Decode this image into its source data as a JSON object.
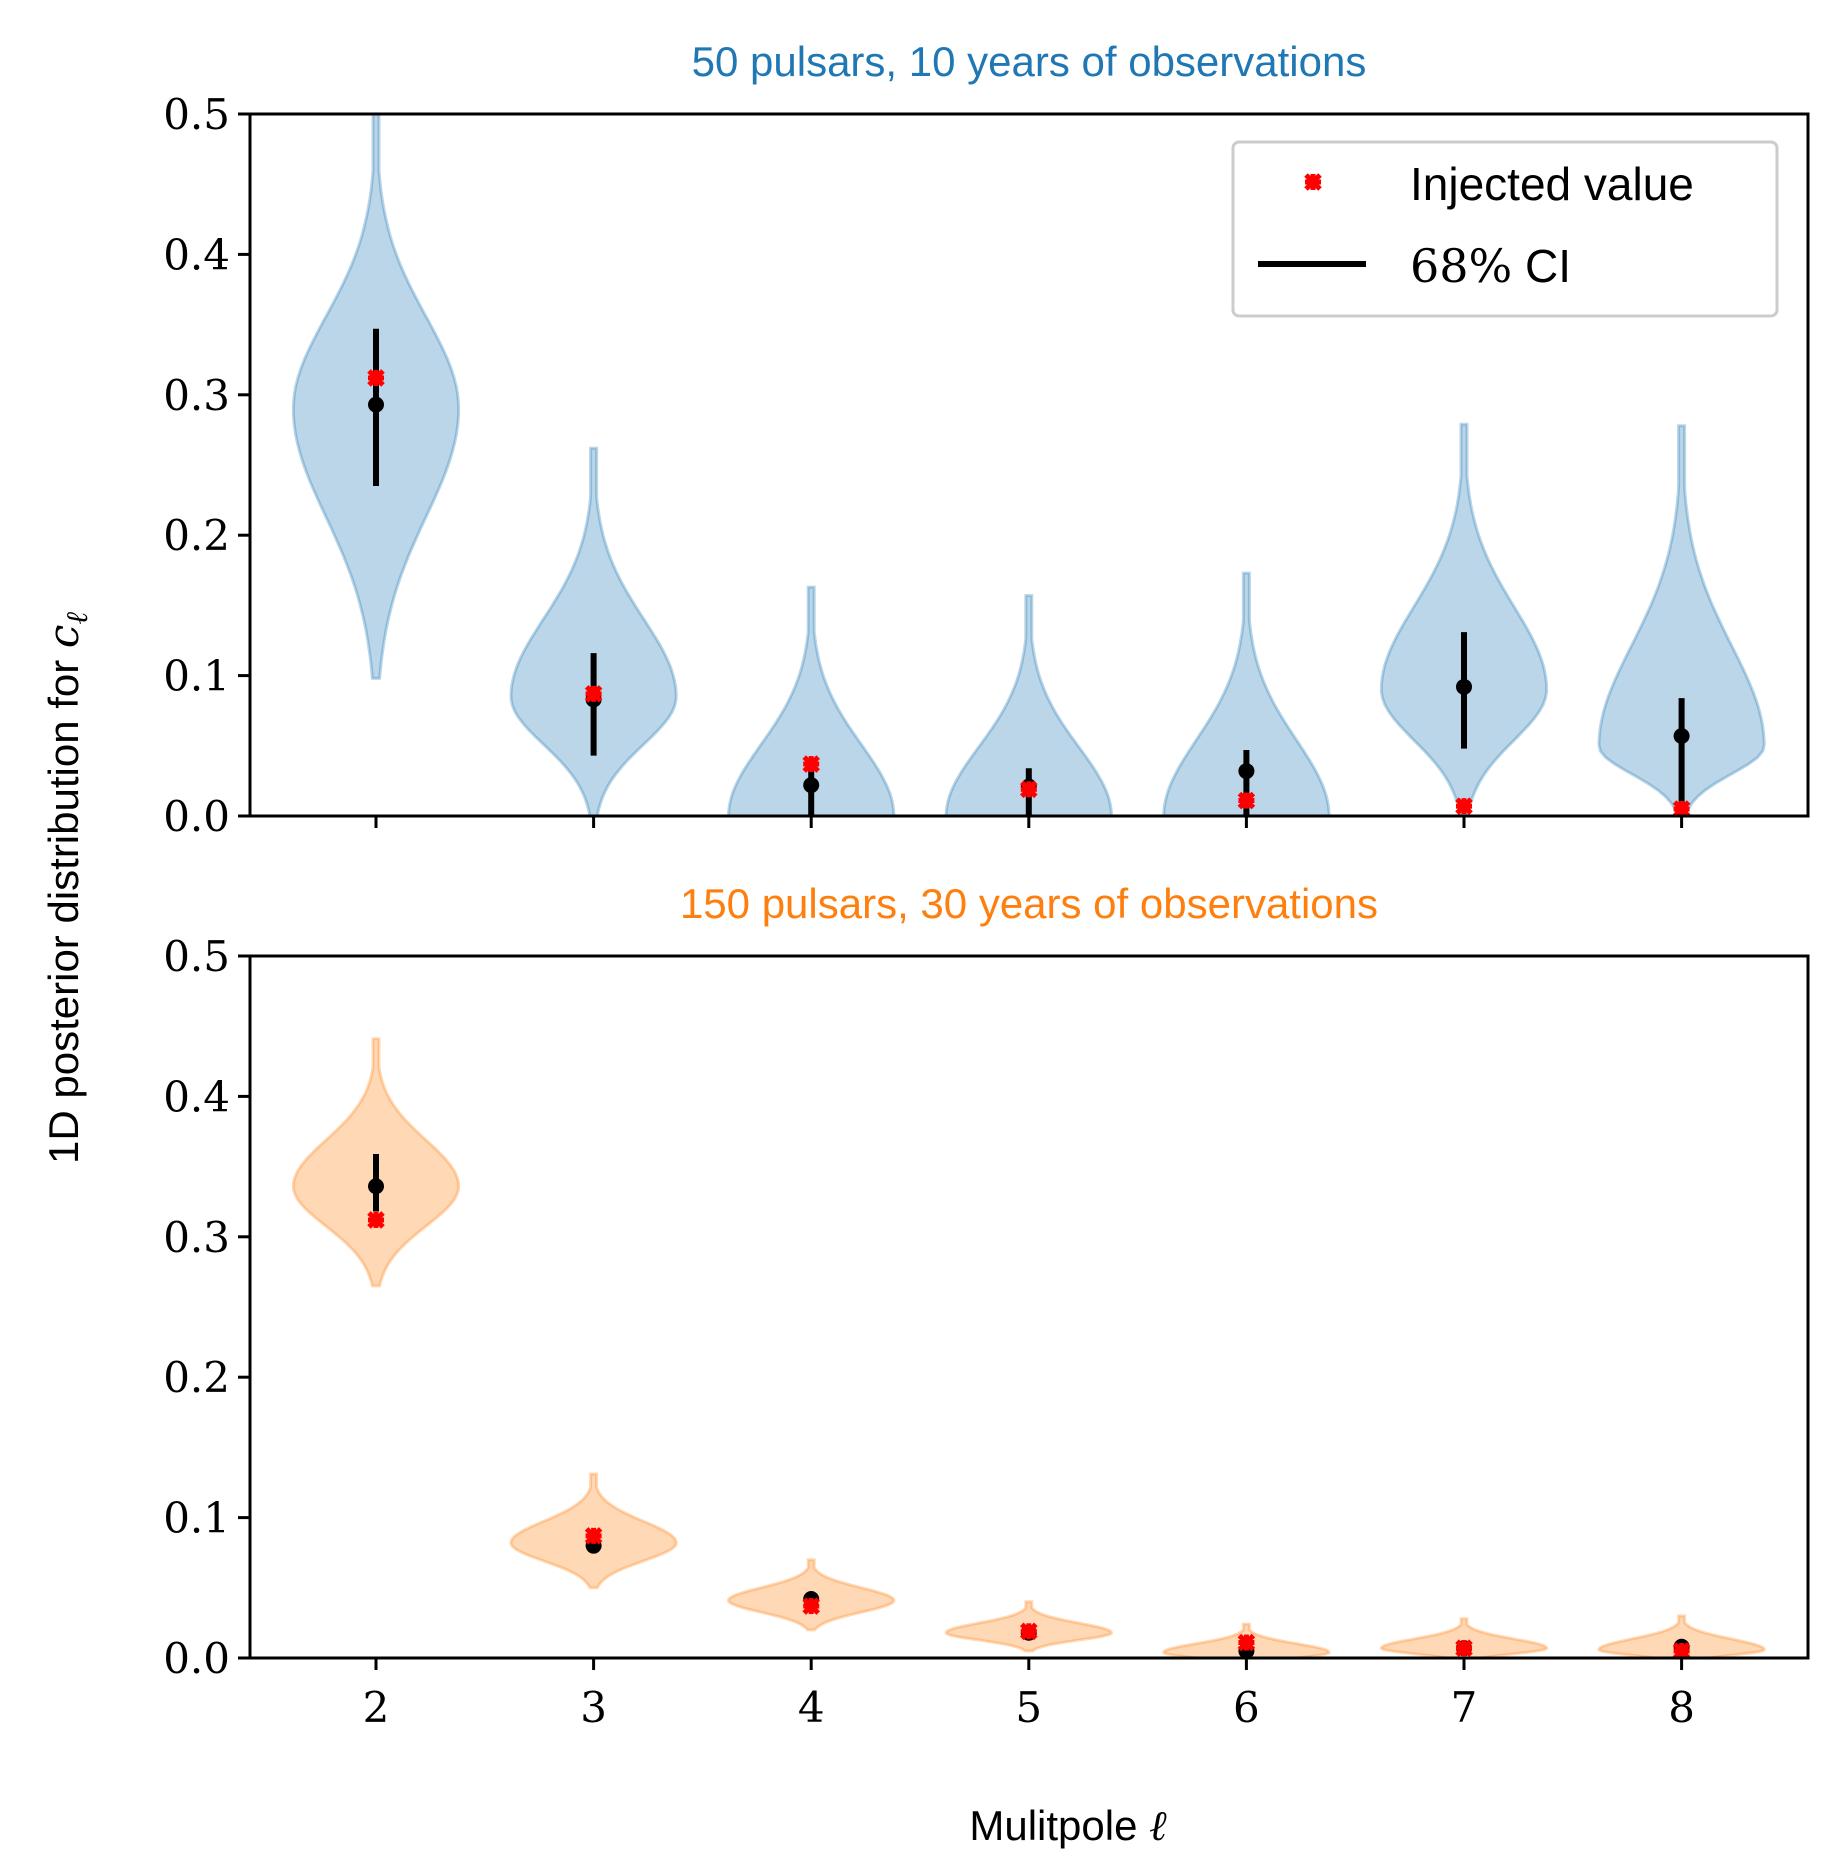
{
  "ylabel_prefix": "1D posterior distribution for ",
  "ylabel_symbol": "c",
  "ylabel_subscript": "ℓ",
  "xlabel_prefix": "Mulitpole ",
  "xlabel_symbol": "ℓ",
  "legend": {
    "injected": "Injected value",
    "ci_pct": "68%",
    "ci_label": " CI"
  },
  "colors": {
    "blue": "#1f77b4",
    "orange": "#ff7f0e",
    "injected": "#ff0000",
    "ci": "#000000"
  },
  "chart_data": {
    "type": "violin",
    "categories": [
      "2",
      "3",
      "4",
      "5",
      "6",
      "7",
      "8"
    ],
    "y_ticks": [
      "0.0",
      "0.1",
      "0.2",
      "0.3",
      "0.4",
      "0.5"
    ],
    "ylim": [
      0,
      0.5
    ],
    "panels": [
      {
        "title": "50 pulsars, 10 years of observations",
        "color": "#1f77b4",
        "median": [
          0.293,
          0.083,
          0.022,
          0.021,
          0.032,
          0.092,
          0.057
        ],
        "ci_low": [
          0.235,
          0.043,
          0.0,
          0.0,
          0.0,
          0.048,
          0.0
        ],
        "ci_high": [
          0.347,
          0.116,
          0.04,
          0.034,
          0.047,
          0.131,
          0.084
        ],
        "injected": [
          0.312,
          0.087,
          0.037,
          0.019,
          0.011,
          0.007,
          0.005
        ],
        "min": [
          0.098,
          0.0,
          0.0,
          0.0,
          0.0,
          0.0,
          0.0
        ],
        "max": [
          0.5,
          0.262,
          0.163,
          0.157,
          0.173,
          0.279,
          0.278
        ],
        "mode": [
          0.29,
          0.085,
          0.0,
          0.0,
          0.0,
          0.09,
          0.05
        ],
        "half_width": [
          0.38,
          0.38,
          0.38,
          0.38,
          0.38,
          0.38,
          0.38
        ]
      },
      {
        "title": "150 pulsars, 30 years of observations",
        "color": "#ff7f0e",
        "median": [
          0.336,
          0.08,
          0.042,
          0.018,
          0.005,
          0.007,
          0.008
        ],
        "ci_low": [
          0.318,
          0.076,
          0.038,
          0.016,
          0.002,
          0.004,
          0.005
        ],
        "ci_high": [
          0.359,
          0.086,
          0.045,
          0.021,
          0.008,
          0.01,
          0.01
        ],
        "injected": [
          0.312,
          0.087,
          0.037,
          0.019,
          0.011,
          0.007,
          0.005
        ],
        "min": [
          0.265,
          0.05,
          0.02,
          0.005,
          0.0,
          0.0,
          0.0
        ],
        "max": [
          0.441,
          0.131,
          0.07,
          0.04,
          0.024,
          0.028,
          0.03
        ],
        "mode": [
          0.336,
          0.082,
          0.041,
          0.018,
          0.004,
          0.007,
          0.006
        ],
        "half_width": [
          0.38,
          0.38,
          0.38,
          0.38,
          0.38,
          0.38,
          0.38
        ]
      }
    ]
  }
}
